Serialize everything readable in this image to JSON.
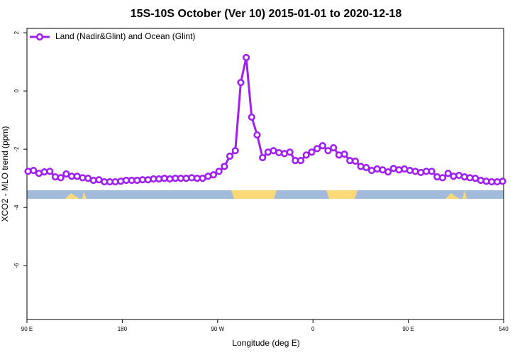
{
  "chart_data": {
    "type": "line",
    "title": "15S-10S October (Ver 10)   2015-01-01 to 2020-12-18",
    "x_label": "Longitude (deg E)",
    "y_label": "XCO2 - MLO trend (ppm)",
    "legend": "top-left",
    "xlim": [
      90,
      540
    ],
    "xticks": [
      {
        "value": 90,
        "label": "90 E"
      },
      180,
      {
        "value": 270,
        "label": "90 W"
      },
      {
        "value": 360,
        "label": "0"
      },
      {
        "value": 450,
        "label": "90 E"
      },
      540
    ],
    "ylim": [
      -7.85,
      2.15
    ],
    "yticks": [
      2,
      0,
      -2,
      -4,
      -6
    ],
    "x": [
      91,
      96.15,
      101.3,
      106.45,
      111.6,
      116.75,
      121.9,
      127.05,
      132.2,
      137.35,
      142.5,
      147.65,
      152.8,
      157.95,
      163.1,
      168.25,
      173.4,
      178.55,
      183.7,
      188.85,
      194,
      199.15,
      204.3,
      209.45,
      214.6,
      219.75,
      224.9,
      230.05,
      235.2,
      240.35,
      245.5,
      250.65,
      255.8,
      260.95,
      266.1,
      271.25,
      276.4,
      281.55,
      286.7,
      291.85,
      297,
      302.15,
      307.3,
      312.45,
      317.6,
      322.75,
      327.9,
      333.05,
      338.2,
      343.35,
      348.5,
      353.65,
      358.8,
      363.95,
      369.1,
      374.25,
      379.4,
      384.55,
      389.7,
      394.85,
      400,
      405.15,
      410.3,
      415.45,
      420.6,
      425.75,
      430.9,
      436.05,
      441.2,
      446.35,
      451.5,
      456.65,
      461.8,
      466.95,
      472.1,
      477.25,
      482.4,
      487.55,
      492.7,
      497.85,
      503,
      508.15,
      513.3,
      518.45,
      523.6,
      528.75,
      533.9,
      539.05
    ],
    "series": [
      {
        "name": "Land (Nadir&Glint) and Ocean (Glint)",
        "color": "#a020f0",
        "values": [
          -2.76,
          -2.73,
          -2.83,
          -2.78,
          -2.76,
          -2.95,
          -2.98,
          -2.85,
          -2.93,
          -2.93,
          -2.98,
          -3.0,
          -3.07,
          -3.05,
          -3.12,
          -3.12,
          -3.12,
          -3.1,
          -3.07,
          -3.07,
          -3.07,
          -3.05,
          -3.05,
          -3.02,
          -3.02,
          -3.0,
          -3.02,
          -3.0,
          -3.0,
          -3.0,
          -2.98,
          -3.0,
          -3.0,
          -2.93,
          -2.88,
          -2.76,
          -2.59,
          -2.24,
          -2.05,
          0.29,
          1.15,
          -0.9,
          -1.51,
          -2.29,
          -2.1,
          -2.05,
          -2.12,
          -2.15,
          -2.1,
          -2.39,
          -2.39,
          -2.2,
          -2.1,
          -1.98,
          -1.88,
          -2.05,
          -1.95,
          -2.2,
          -2.17,
          -2.39,
          -2.41,
          -2.59,
          -2.63,
          -2.73,
          -2.68,
          -2.71,
          -2.78,
          -2.66,
          -2.71,
          -2.68,
          -2.73,
          -2.76,
          -2.8,
          -2.76,
          -2.76,
          -2.95,
          -2.98,
          -2.83,
          -2.93,
          -2.9,
          -2.95,
          -2.98,
          -3.0,
          -3.07,
          -3.1,
          -3.12,
          -3.12,
          -3.1
        ]
      }
    ]
  }
}
